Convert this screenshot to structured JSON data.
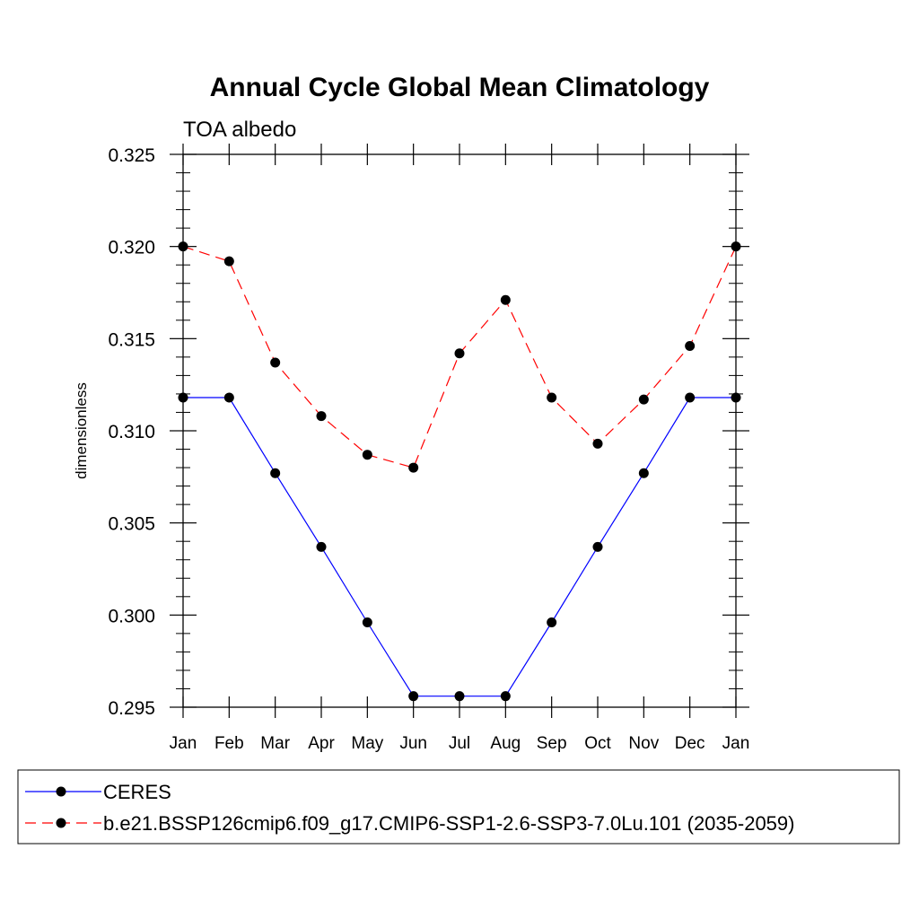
{
  "chart_data": {
    "type": "line",
    "title": "Annual Cycle Global Mean Climatology",
    "subtitle": "TOA albedo",
    "xlabel": "",
    "ylabel": "dimensionless",
    "categories": [
      "Jan",
      "Feb",
      "Mar",
      "Apr",
      "May",
      "Jun",
      "Jul",
      "Aug",
      "Sep",
      "Oct",
      "Nov",
      "Dec",
      "Jan"
    ],
    "ylim": [
      0.295,
      0.325
    ],
    "yticks": [
      {
        "value": 0.295,
        "label": "0.295"
      },
      {
        "value": 0.3,
        "label": "0.300"
      },
      {
        "value": 0.305,
        "label": "0.305"
      },
      {
        "value": 0.31,
        "label": "0.310"
      },
      {
        "value": 0.315,
        "label": "0.315"
      },
      {
        "value": 0.32,
        "label": "0.320"
      },
      {
        "value": 0.325,
        "label": "0.325"
      }
    ],
    "grid": false,
    "legend_position": "bottom",
    "series": [
      {
        "name": "CERES",
        "color": "#0000ff",
        "style": "solid",
        "marker": "circle",
        "values": [
          0.3118,
          0.3118,
          0.3077,
          0.3037,
          0.2996,
          0.2956,
          0.2956,
          0.2956,
          0.2996,
          0.3037,
          0.3077,
          0.3118,
          0.3118
        ]
      },
      {
        "name": "b.e21.BSSP126cmip6.f09_g17.CMIP6-SSP1-2.6-SSP3-7.0Lu.101 (2035-2059)",
        "color": "#ff0000",
        "style": "dashed",
        "marker": "circle",
        "values": [
          0.32,
          0.3192,
          0.3137,
          0.3108,
          0.3087,
          0.308,
          0.3142,
          0.3171,
          0.3118,
          0.3093,
          0.3117,
          0.3146,
          0.32
        ]
      }
    ]
  }
}
